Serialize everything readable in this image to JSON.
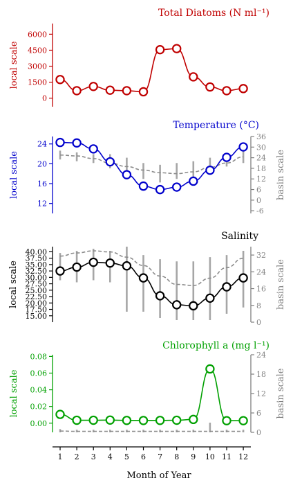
{
  "chart_data": [
    {
      "type": "line",
      "title": "Total Diatoms (N ml⁻¹)",
      "color": "#c00000",
      "ylabel": "local scale",
      "y2label": "",
      "x": [
        1,
        2,
        3,
        4,
        5,
        6,
        7,
        8,
        9,
        10,
        11,
        12
      ],
      "ylim": [
        -800,
        7000
      ],
      "yticks": [
        0,
        1500,
        3000,
        4500,
        6000
      ],
      "ytick_labels": [
        "0",
        "1500",
        "3000",
        "4500",
        "6000"
      ],
      "series": [
        {
          "values": [
            1750,
            700,
            1100,
            750,
            700,
            600,
            4550,
            4650,
            2000,
            1050,
            700,
            900
          ]
        }
      ]
    },
    {
      "type": "line",
      "title": "Temperature (°C)",
      "color": "#0000cc",
      "ylabel": "local scale",
      "y2label": "basin scale",
      "x": [
        1,
        2,
        3,
        4,
        5,
        6,
        7,
        8,
        9,
        10,
        11,
        12
      ],
      "ylim": [
        10,
        25.5
      ],
      "yticks": [
        12,
        16,
        20,
        24
      ],
      "ytick_labels": [
        "12",
        "16",
        "20",
        "24"
      ],
      "y2lim": [
        -7.5,
        36
      ],
      "y2ticks": [
        -6,
        0,
        6,
        12,
        18,
        24,
        30,
        36
      ],
      "y2tick_labels": [
        "-6",
        "0",
        "6",
        "12",
        "18",
        "24",
        "30",
        "36"
      ],
      "series": [
        {
          "values": [
            24.3,
            24.2,
            23.0,
            20.4,
            17.8,
            15.5,
            14.8,
            15.3,
            16.5,
            18.7,
            21.3,
            23.4
          ]
        }
      ],
      "basin_mean": [
        25.5,
        25.0,
        23.5,
        21.0,
        19.0,
        17.0,
        15.5,
        15.0,
        16.0,
        18.5,
        21.0,
        24.5
      ],
      "basin_ranges": [
        [
          23,
          28
        ],
        [
          22,
          27
        ],
        [
          21,
          26
        ],
        [
          18,
          26
        ],
        [
          14,
          24
        ],
        [
          12,
          21
        ],
        [
          10,
          20
        ],
        [
          12,
          21
        ],
        [
          13,
          22
        ],
        [
          16,
          24
        ],
        [
          19,
          26
        ],
        [
          21,
          28
        ]
      ]
    },
    {
      "type": "line",
      "title": "Salinity",
      "color": "#000000",
      "ylabel": "local scale",
      "y2label": "basin scale",
      "x": [
        1,
        2,
        3,
        4,
        5,
        6,
        7,
        8,
        9,
        10,
        11,
        12
      ],
      "ylim": [
        12.5,
        42
      ],
      "yticks": [
        15,
        17.5,
        20,
        22.5,
        25,
        27.5,
        30,
        32.5,
        35,
        37.5,
        40
      ],
      "ytick_labels": [
        "15.00",
        "17.50",
        "20.00",
        "22.50",
        "25.00",
        "27.50",
        "30.00",
        "32.50",
        "35.00",
        "37.50",
        "40.00"
      ],
      "y2lim": [
        0,
        36
      ],
      "y2ticks": [
        0,
        8,
        16,
        24,
        32
      ],
      "y2tick_labels": [
        "0",
        "8",
        "16",
        "24",
        "32"
      ],
      "series": [
        {
          "values": [
            32.5,
            34.0,
            35.9,
            35.6,
            34.5,
            29.8,
            22.8,
            19.3,
            18.9,
            21.9,
            26.3,
            29.8
          ]
        }
      ],
      "basin_mean": [
        31.5,
        33.0,
        34.0,
        33.5,
        31.0,
        27.0,
        22.0,
        18.0,
        17.5,
        21.0,
        26.0,
        30.5
      ],
      "basin_ranges": [
        [
          20,
          33
        ],
        [
          19,
          34
        ],
        [
          20,
          35
        ],
        [
          19,
          34
        ],
        [
          5,
          36
        ],
        [
          5,
          32
        ],
        [
          2,
          30
        ],
        [
          1,
          29
        ],
        [
          1,
          29
        ],
        [
          1,
          31
        ],
        [
          4,
          32
        ],
        [
          7,
          34
        ]
      ]
    },
    {
      "type": "line",
      "title": "Chlorophyll a (mg l⁻¹)",
      "color": "#00a000",
      "ylabel": "local scale",
      "y2label": "basin scale",
      "x": [
        1,
        2,
        3,
        4,
        5,
        6,
        7,
        8,
        9,
        10,
        11,
        12
      ],
      "xlabel": "Month of Year",
      "xtick_labels": [
        "1",
        "2",
        "3",
        "4",
        "5",
        "6",
        "7",
        "8",
        "9",
        "10",
        "11",
        "12"
      ],
      "ylim": [
        -0.011,
        0.082
      ],
      "yticks": [
        0,
        0.02,
        0.04,
        0.06,
        0.08
      ],
      "ytick_labels": [
        "0.00",
        "0.02",
        "0.04",
        "0.06",
        "0.08"
      ],
      "y2lim": [
        0,
        24
      ],
      "y2ticks": [
        0,
        6,
        12,
        18,
        24
      ],
      "y2tick_labels": [
        "0",
        "6",
        "12",
        "18",
        "24"
      ],
      "series": [
        {
          "values": [
            0.0105,
            0.0035,
            0.0035,
            0.0037,
            0.0033,
            0.0032,
            0.0033,
            0.0035,
            0.0045,
            0.065,
            0.003,
            0.003
          ]
        }
      ],
      "basin_mean": [
        0.4,
        0.3,
        0.3,
        0.3,
        0.3,
        0.3,
        0.3,
        0.3,
        0.3,
        0.3,
        0.3,
        0.3
      ],
      "basin_ranges": [
        [
          0,
          1
        ],
        [
          0,
          0.8
        ],
        [
          0,
          0.8
        ],
        [
          0,
          0.8
        ],
        [
          0,
          0.8
        ],
        [
          0,
          0.8
        ],
        [
          0,
          0.8
        ],
        [
          0,
          0.8
        ],
        [
          0,
          0.8
        ],
        [
          0,
          3
        ],
        [
          0,
          0.8
        ],
        [
          0,
          0.8
        ]
      ]
    }
  ]
}
